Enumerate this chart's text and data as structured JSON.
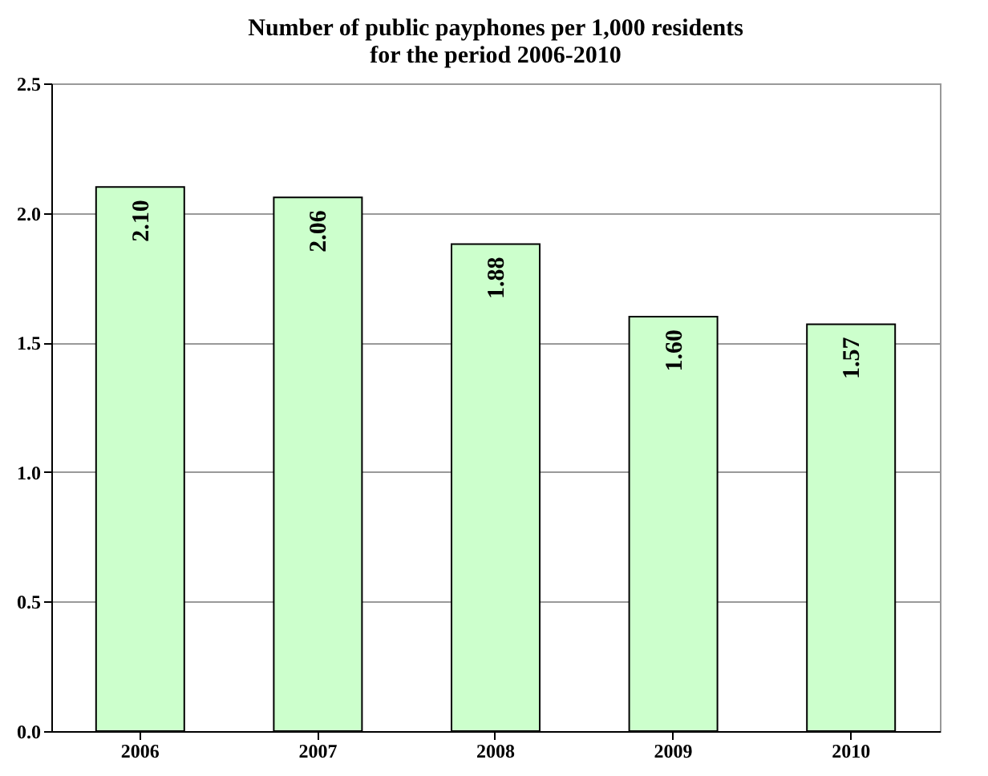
{
  "chart_data": {
    "type": "bar",
    "title": [
      "Number of public payphones per 1,000 residents",
      "for the period 2006-2010"
    ],
    "categories": [
      "2006",
      "2007",
      "2008",
      "2009",
      "2010"
    ],
    "values": [
      2.1,
      2.06,
      1.88,
      1.6,
      1.57
    ],
    "value_labels": [
      "2.10",
      "2.06",
      "1.88",
      "1.60",
      "1.57"
    ],
    "color": "#ccffcc",
    "ylim": [
      0,
      2.5
    ],
    "yticks": [
      {
        "value": 0,
        "label": "0.0"
      },
      {
        "value": 0.5,
        "label": "0.5"
      },
      {
        "value": 1,
        "label": "1.0"
      },
      {
        "value": 1.5,
        "label": "1.5"
      },
      {
        "value": 2,
        "label": "2.0"
      },
      {
        "value": 2.5,
        "label": "2.5"
      }
    ],
    "grid": "y"
  }
}
